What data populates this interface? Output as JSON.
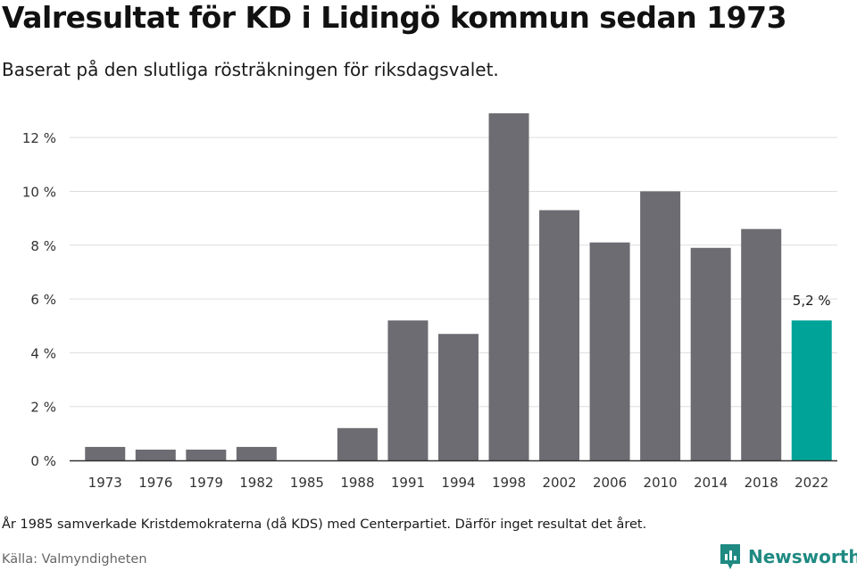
{
  "chart_data": {
    "type": "bar",
    "title": "Valresultat för KD i Lidingö kommun sedan 1973",
    "subtitle": "Baserat på den slutliga rösträkningen för riksdagsvalet.",
    "categories": [
      "1973",
      "1976",
      "1979",
      "1982",
      "1985",
      "1988",
      "1991",
      "1994",
      "1998",
      "2002",
      "2006",
      "2010",
      "2014",
      "2018",
      "2022"
    ],
    "values": [
      0.5,
      0.4,
      0.4,
      0.5,
      null,
      1.2,
      5.2,
      4.7,
      12.9,
      9.3,
      8.1,
      10.0,
      7.9,
      8.6,
      5.2
    ],
    "ylim": [
      0,
      13
    ],
    "yticks": [
      0,
      2,
      4,
      6,
      8,
      10,
      12
    ],
    "ytick_labels": [
      "0 %",
      "2 %",
      "4 %",
      "6 %",
      "8 %",
      "10 %",
      "12 %"
    ],
    "grid": true,
    "highlight_index": 14,
    "highlight_label": "5,2 %",
    "colors": {
      "bar": "#6d6c72",
      "highlight": "#00a398",
      "grid": "#dddddd",
      "axis": "#333333"
    }
  },
  "footer": {
    "note": "År 1985 samverkade Kristdemokraterna (då KDS) med Centerpartiet. Därför inget resultat det året.",
    "source": "Källa: Valmyndigheten",
    "brand": "Newsworthy",
    "brand_icon": "newsworthy-logo-icon",
    "brand_color": "#1f8a82"
  }
}
